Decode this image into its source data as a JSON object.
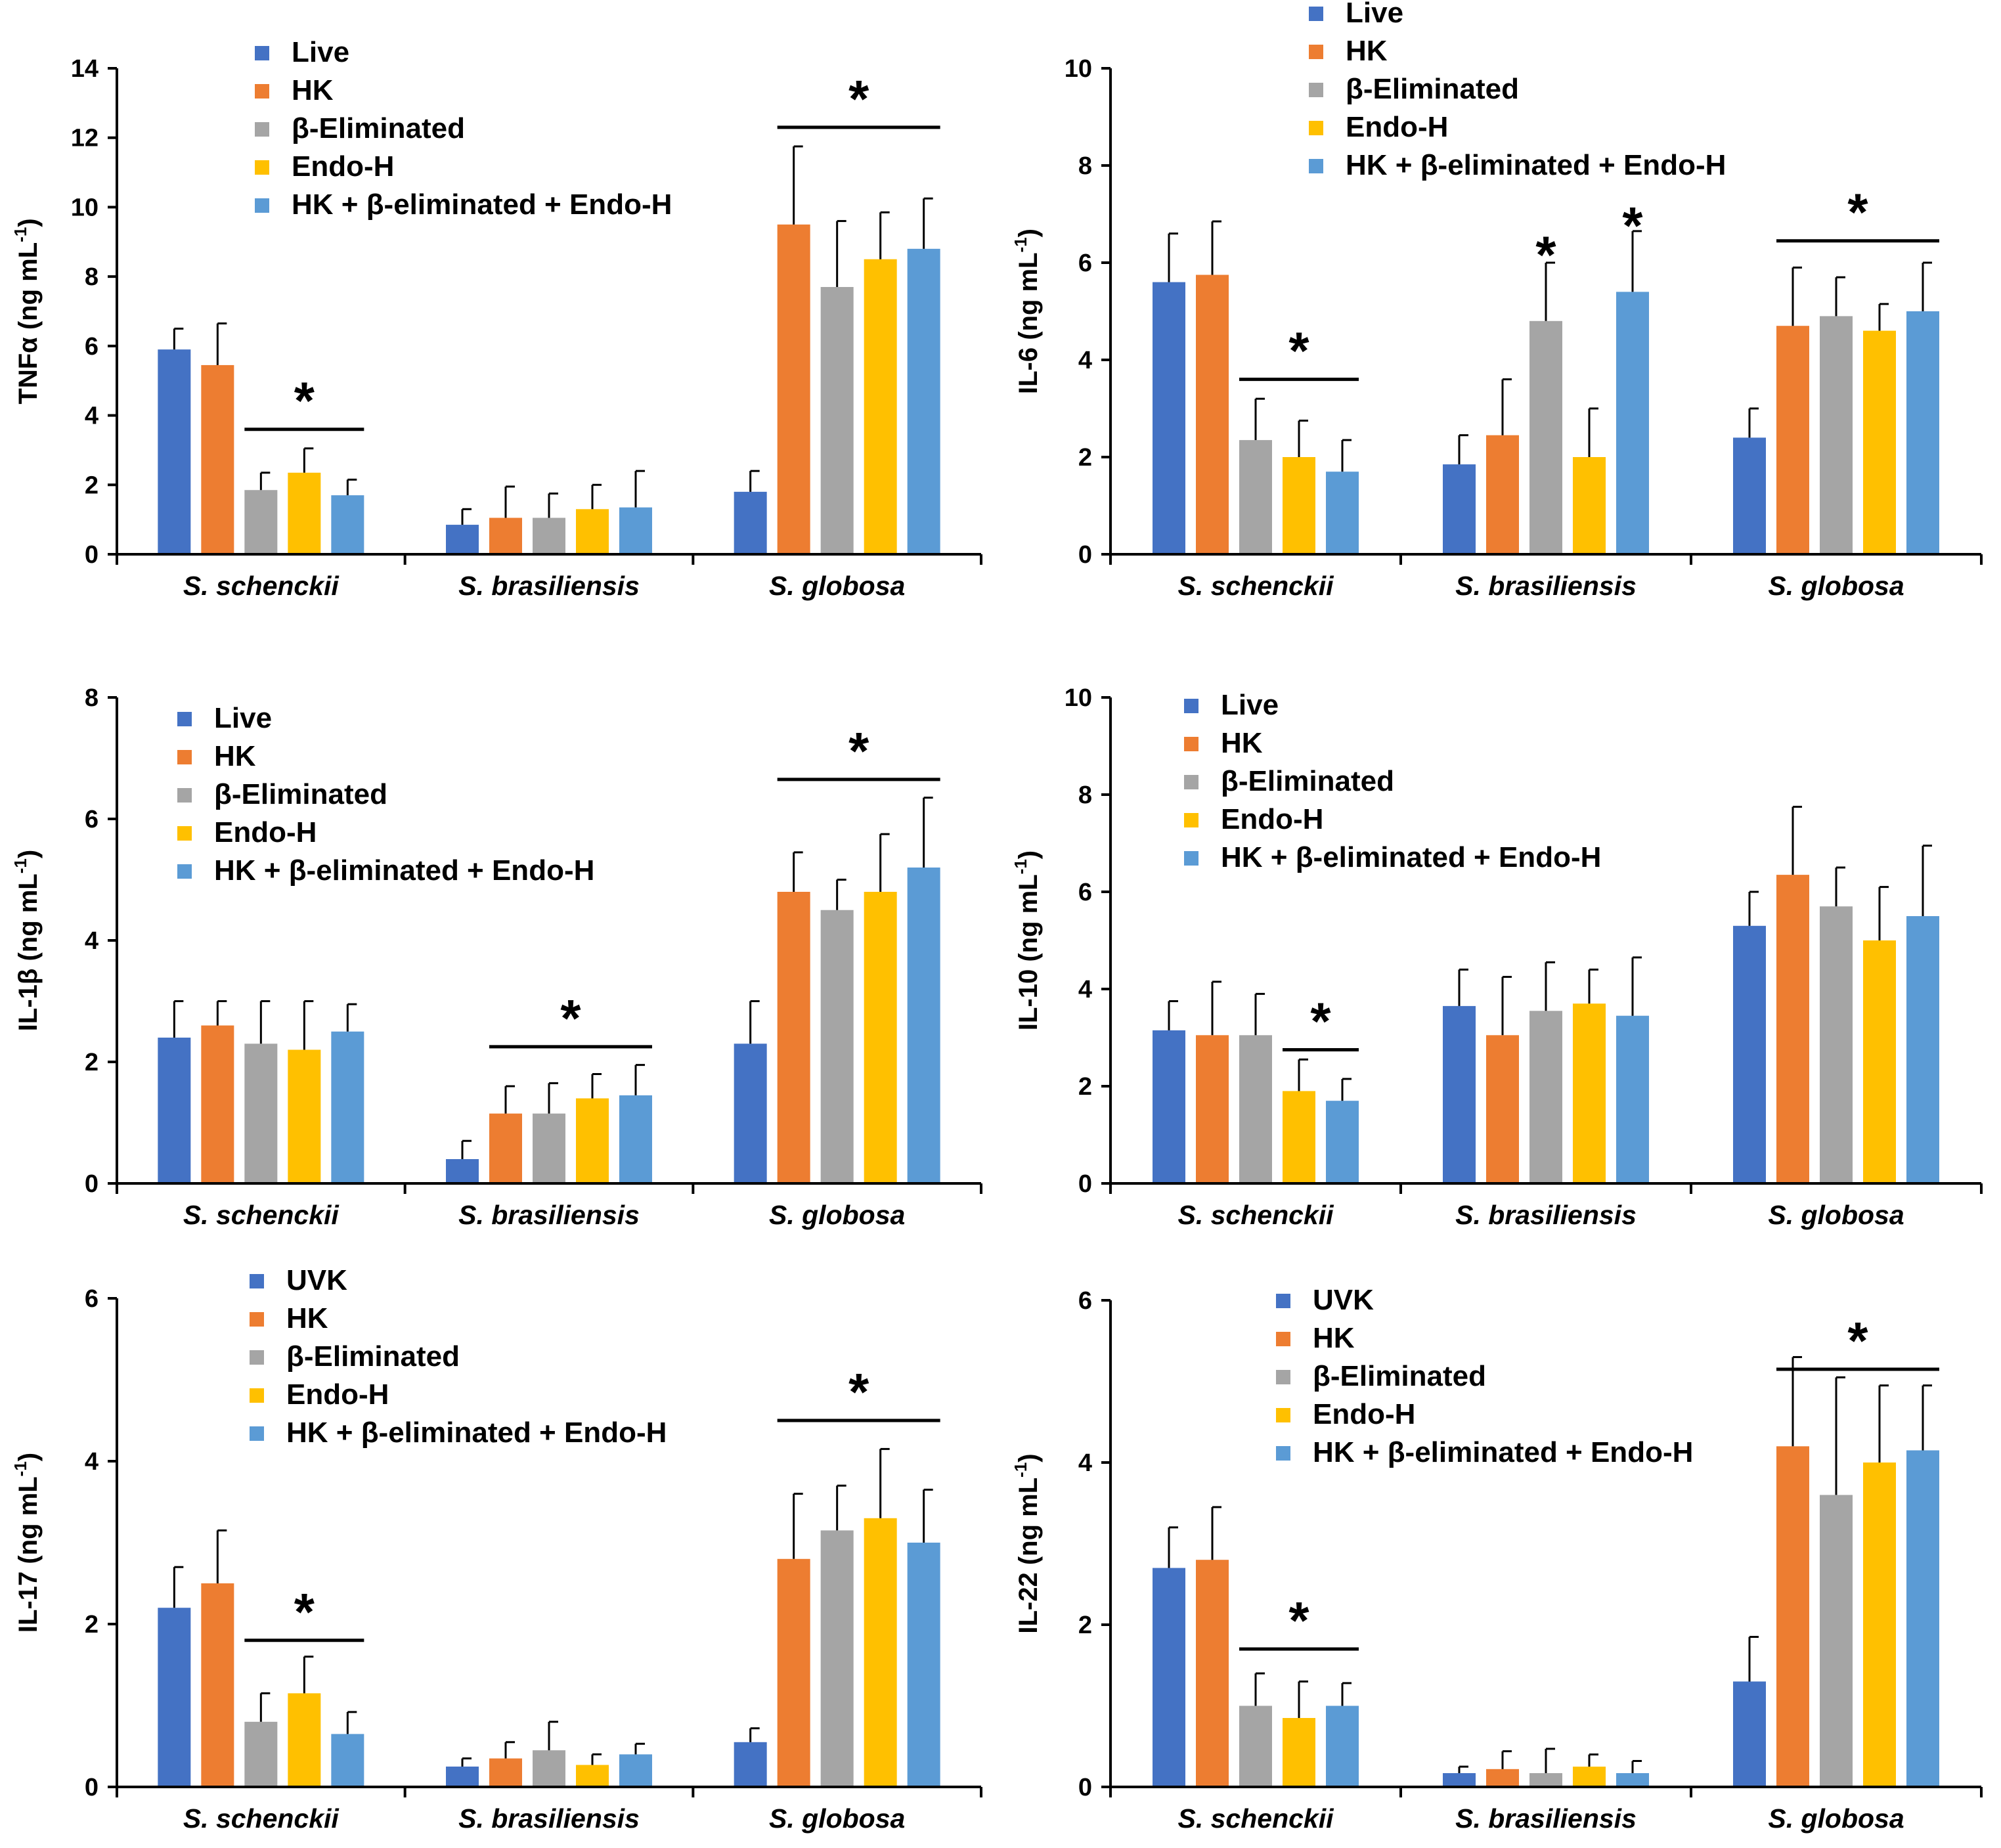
{
  "colors": {
    "series": [
      "#4472C4",
      "#ED7D31",
      "#A5A5A5",
      "#FFC000",
      "#5B9BD5"
    ],
    "axis": "#000000",
    "error_bar": "#000000",
    "background": "#FFFFFF"
  },
  "chart_data": [
    {
      "type": "bar",
      "title": "",
      "xlabel": "",
      "ylabel": "TNFα (ng mL-1)",
      "ylabel_main": "TNFα",
      "ylabel_unit": "ng mL",
      "ylabel_sup": "-1",
      "ylim": [
        0,
        14
      ],
      "yticks": [
        0,
        2,
        4,
        6,
        8,
        10,
        12,
        14
      ],
      "categories": [
        "S. schenckii",
        "S. brasiliensis",
        "S. globosa"
      ],
      "series": [
        {
          "name": "Live",
          "values": [
            5.9,
            0.85,
            1.8
          ],
          "errors": [
            0.6,
            0.45,
            0.6
          ]
        },
        {
          "name": "HK",
          "values": [
            5.45,
            1.05,
            9.5
          ],
          "errors": [
            1.2,
            0.9,
            2.25
          ]
        },
        {
          "name": "β-Eliminated",
          "values": [
            1.85,
            1.05,
            7.7
          ],
          "errors": [
            0.5,
            0.7,
            1.9
          ]
        },
        {
          "name": "Endo-H",
          "values": [
            2.35,
            1.3,
            8.5
          ],
          "errors": [
            0.7,
            0.7,
            1.35
          ]
        },
        {
          "name": "HK + β-eliminated + Endo-H",
          "values": [
            1.7,
            1.35,
            8.8
          ],
          "errors": [
            0.45,
            1.05,
            1.45
          ]
        }
      ],
      "significance": [
        {
          "category": 0,
          "from_series": 2,
          "to_series": 4,
          "bar_y": 3.6,
          "label": "*"
        },
        {
          "category": 2,
          "from_series": 1,
          "to_series": 4,
          "bar_y": 12.3,
          "label": "*"
        }
      ]
    },
    {
      "type": "bar",
      "title": "",
      "xlabel": "",
      "ylabel": "IL-6 (ng mL-1)",
      "ylabel_main": "IL-6",
      "ylabel_unit": "ng mL",
      "ylabel_sup": "-1",
      "ylim": [
        0,
        10
      ],
      "yticks": [
        0,
        2,
        4,
        6,
        8,
        10
      ],
      "categories": [
        "S. schenckii",
        "S. brasiliensis",
        "S. globosa"
      ],
      "series": [
        {
          "name": "Live",
          "values": [
            5.6,
            1.85,
            2.4
          ],
          "errors": [
            1.0,
            0.6,
            0.6
          ]
        },
        {
          "name": "HK",
          "values": [
            5.75,
            2.45,
            4.7
          ],
          "errors": [
            1.1,
            1.15,
            1.2
          ]
        },
        {
          "name": "β-Eliminated",
          "values": [
            2.35,
            4.8,
            4.9
          ],
          "errors": [
            0.85,
            1.2,
            0.8
          ]
        },
        {
          "name": "Endo-H",
          "values": [
            2.0,
            2.0,
            4.6
          ],
          "errors": [
            0.75,
            1.0,
            0.55
          ]
        },
        {
          "name": "HK + β-eliminated + Endo-H",
          "values": [
            1.7,
            5.4,
            5.0
          ],
          "errors": [
            0.65,
            1.25,
            1.0
          ]
        }
      ],
      "significance": [
        {
          "category": 0,
          "from_series": 2,
          "to_series": 4,
          "bar_y": 3.6,
          "label": "*"
        },
        {
          "category": 1,
          "series": 2,
          "star_y": 6.25,
          "label": "*"
        },
        {
          "category": 1,
          "series": 4,
          "star_y": 6.85,
          "label": "*"
        },
        {
          "category": 2,
          "from_series": 1,
          "to_series": 4,
          "bar_y": 6.45,
          "label": "*"
        }
      ]
    },
    {
      "type": "bar",
      "title": "",
      "xlabel": "",
      "ylabel": "IL-1β (ng mL-1)",
      "ylabel_main": "IL-1β",
      "ylabel_unit": "ng mL",
      "ylabel_sup": "-1",
      "ylim": [
        0,
        8
      ],
      "yticks": [
        0,
        2,
        4,
        6,
        8
      ],
      "categories": [
        "S. schenckii",
        "S. brasiliensis",
        "S. globosa"
      ],
      "series": [
        {
          "name": "Live",
          "values": [
            2.4,
            0.4,
            2.3
          ],
          "errors": [
            0.6,
            0.3,
            0.7
          ]
        },
        {
          "name": "HK",
          "values": [
            2.6,
            1.15,
            4.8
          ],
          "errors": [
            0.4,
            0.45,
            0.65
          ]
        },
        {
          "name": "β-Eliminated",
          "values": [
            2.3,
            1.15,
            4.5
          ],
          "errors": [
            0.7,
            0.5,
            0.5
          ]
        },
        {
          "name": "Endo-H",
          "values": [
            2.2,
            1.4,
            4.8
          ],
          "errors": [
            0.8,
            0.4,
            0.95
          ]
        },
        {
          "name": "HK + β-eliminated + Endo-H",
          "values": [
            2.5,
            1.45,
            5.2
          ],
          "errors": [
            0.45,
            0.5,
            1.15
          ]
        }
      ],
      "significance": [
        {
          "category": 1,
          "from_series": 1,
          "to_series": 4,
          "bar_y": 2.25,
          "label": "*"
        },
        {
          "category": 2,
          "from_series": 1,
          "to_series": 4,
          "bar_y": 6.65,
          "label": "*"
        }
      ]
    },
    {
      "type": "bar",
      "title": "",
      "xlabel": "",
      "ylabel": "IL-10 (ng mL-1)",
      "ylabel_main": "IL-10",
      "ylabel_unit": "ng mL",
      "ylabel_sup": "-1",
      "ylim": [
        0,
        10
      ],
      "yticks": [
        0,
        2,
        4,
        6,
        8,
        10
      ],
      "categories": [
        "S. schenckii",
        "S. brasiliensis",
        "S. globosa"
      ],
      "series": [
        {
          "name": "Live",
          "values": [
            3.15,
            3.65,
            5.3
          ],
          "errors": [
            0.6,
            0.75,
            0.7
          ]
        },
        {
          "name": "HK",
          "values": [
            3.05,
            3.05,
            6.35
          ],
          "errors": [
            1.1,
            1.2,
            1.4
          ]
        },
        {
          "name": "β-Eliminated",
          "values": [
            3.05,
            3.55,
            5.7
          ],
          "errors": [
            0.85,
            1.0,
            0.8
          ]
        },
        {
          "name": "Endo-H",
          "values": [
            1.9,
            3.7,
            5.0
          ],
          "errors": [
            0.65,
            0.7,
            1.1
          ]
        },
        {
          "name": "HK + β-eliminated + Endo-H",
          "values": [
            1.7,
            3.45,
            5.5
          ],
          "errors": [
            0.45,
            1.2,
            1.45
          ]
        }
      ],
      "significance": [
        {
          "category": 0,
          "from_series": 3,
          "to_series": 4,
          "bar_y": 2.75,
          "label": "*"
        }
      ]
    },
    {
      "type": "bar",
      "title": "",
      "xlabel": "",
      "ylabel": "IL-17 (ng mL-1)",
      "ylabel_main": "IL-17",
      "ylabel_unit": "ng mL",
      "ylabel_sup": "-1",
      "ylim": [
        0,
        6
      ],
      "yticks": [
        0,
        2,
        4,
        6
      ],
      "categories": [
        "S. schenckii",
        "S. brasiliensis",
        "S. globosa"
      ],
      "series": [
        {
          "name": "UVK",
          "values": [
            2.2,
            0.25,
            0.55
          ],
          "errors": [
            0.5,
            0.1,
            0.17
          ]
        },
        {
          "name": "HK",
          "values": [
            2.5,
            0.35,
            2.8
          ],
          "errors": [
            0.65,
            0.2,
            0.8
          ]
        },
        {
          "name": "β-Eliminated",
          "values": [
            0.8,
            0.45,
            3.15
          ],
          "errors": [
            0.35,
            0.35,
            0.55
          ]
        },
        {
          "name": "Endo-H",
          "values": [
            1.15,
            0.27,
            3.3
          ],
          "errors": [
            0.45,
            0.13,
            0.85
          ]
        },
        {
          "name": "HK + β-eliminated + Endo-H",
          "values": [
            0.65,
            0.4,
            3.0
          ],
          "errors": [
            0.27,
            0.13,
            0.65
          ]
        }
      ],
      "significance": [
        {
          "category": 0,
          "from_series": 2,
          "to_series": 4,
          "bar_y": 1.8,
          "label": "*"
        },
        {
          "category": 2,
          "from_series": 1,
          "to_series": 4,
          "bar_y": 4.5,
          "label": "*"
        }
      ]
    },
    {
      "type": "bar",
      "title": "",
      "xlabel": "",
      "ylabel": "IL-22 (ng mL-1)",
      "ylabel_main": "IL-22",
      "ylabel_unit": "ng mL",
      "ylabel_sup": "-1",
      "ylim": [
        0,
        6
      ],
      "yticks": [
        0,
        2,
        4,
        6
      ],
      "categories": [
        "S. schenckii",
        "S. brasiliensis",
        "S. globosa"
      ],
      "series": [
        {
          "name": "UVK",
          "values": [
            2.7,
            0.17,
            1.3
          ],
          "errors": [
            0.5,
            0.08,
            0.55
          ]
        },
        {
          "name": "HK",
          "values": [
            2.8,
            0.22,
            4.2
          ],
          "errors": [
            0.65,
            0.22,
            1.1
          ]
        },
        {
          "name": "β-Eliminated",
          "values": [
            1.0,
            0.17,
            3.6
          ],
          "errors": [
            0.4,
            0.3,
            1.45
          ]
        },
        {
          "name": "Endo-H",
          "values": [
            0.85,
            0.25,
            4.0
          ],
          "errors": [
            0.45,
            0.15,
            0.95
          ]
        },
        {
          "name": "HK + β-eliminated + Endo-H",
          "values": [
            1.0,
            0.17,
            4.15
          ],
          "errors": [
            0.28,
            0.15,
            0.8
          ]
        }
      ],
      "significance": [
        {
          "category": 0,
          "from_series": 2,
          "to_series": 4,
          "bar_y": 1.7,
          "label": "*"
        },
        {
          "category": 2,
          "from_series": 1,
          "to_series": 4,
          "bar_y": 5.15,
          "label": "*"
        }
      ]
    }
  ]
}
